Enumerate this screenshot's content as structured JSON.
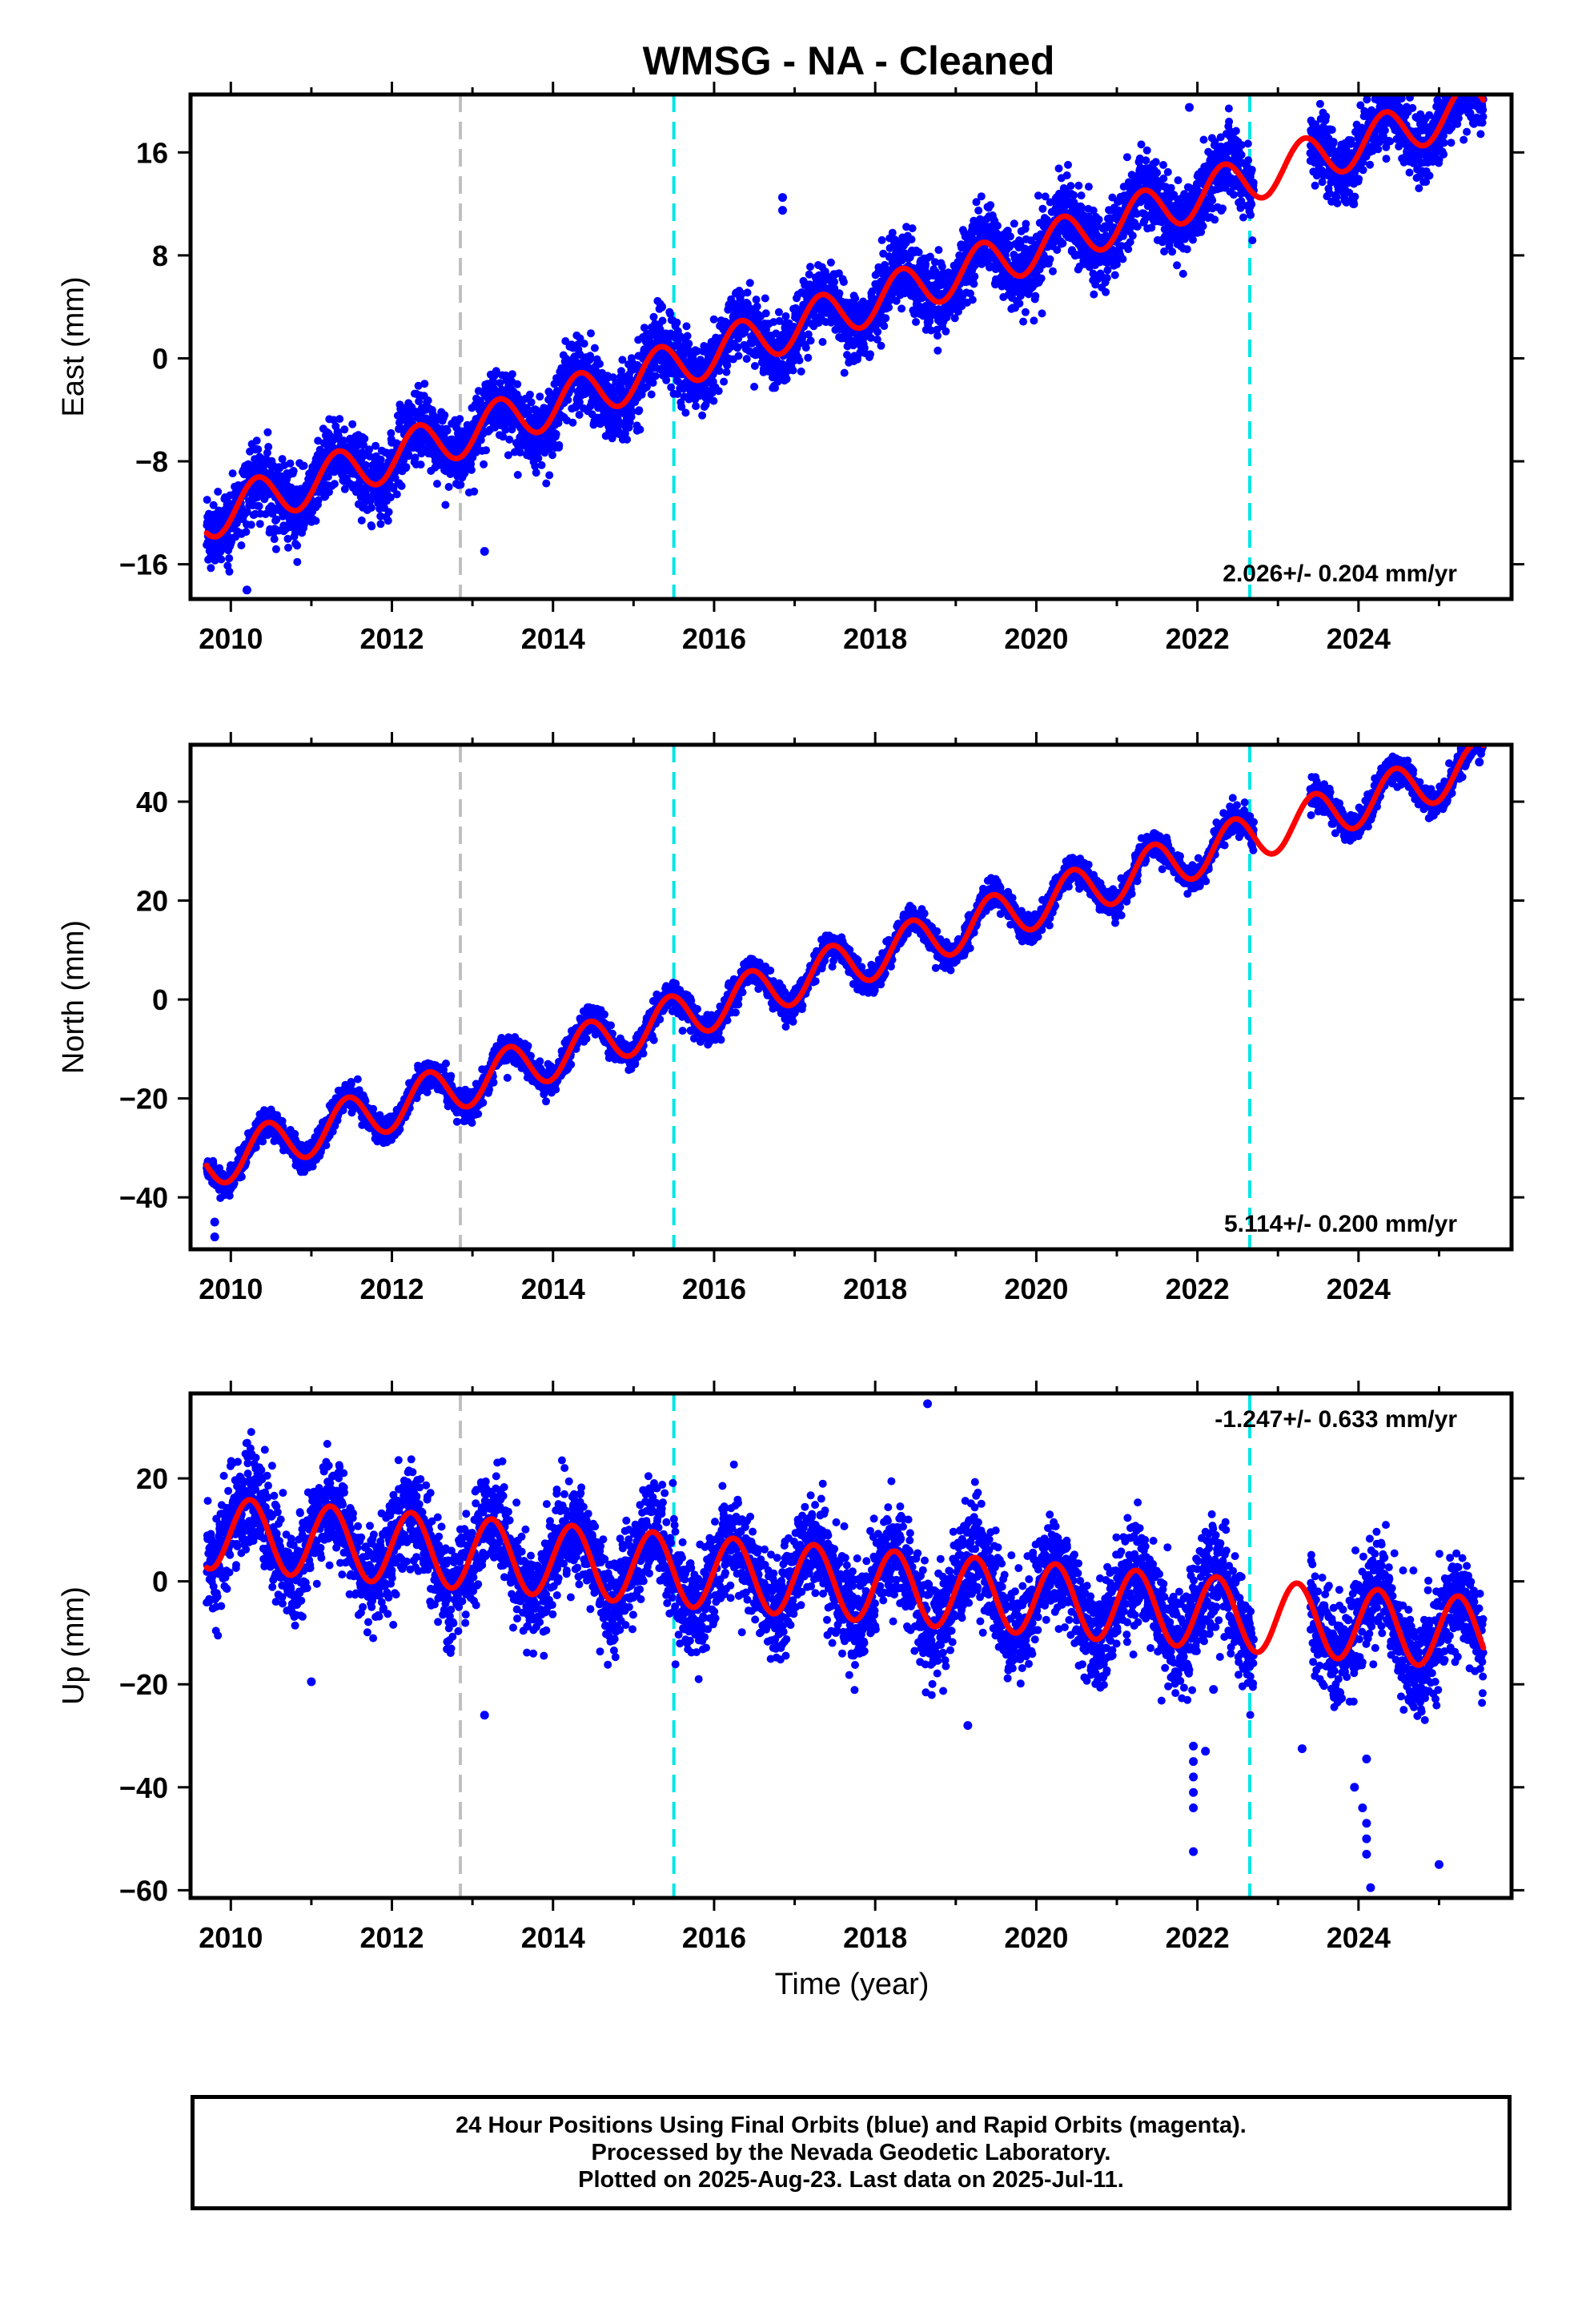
{
  "title": "WMSG  - NA - Cleaned",
  "xlabel": "Time (year)",
  "footer": {
    "line1": "24 Hour Positions Using Final Orbits (blue) and Rapid Orbits (magenta).",
    "line2": "Processed by the Nevada Geodetic Laboratory.",
    "line3": "Plotted on 2025-Aug-23. Last data on 2025-Jul-11."
  },
  "colors": {
    "points": "#0000ff",
    "model": "#ff0000",
    "equipment_change": "#c0c0c0",
    "event": "#00e5e5"
  },
  "chart_data": [
    {
      "type": "scatter",
      "component": "east",
      "ylabel": "East (mm)",
      "rate_label": "2.026+/- 0.204 mm/yr",
      "rate_position": "bottom-right",
      "xlim": [
        2009.5,
        2025.9
      ],
      "ylim": [
        -18.7,
        20.5
      ],
      "xticks": [
        2010,
        2012,
        2014,
        2016,
        2018,
        2020,
        2022,
        2024
      ],
      "yticks": [
        -16,
        -8,
        0,
        8,
        16
      ],
      "vlines": [
        {
          "x": 2012.85,
          "kind": "equipment_change"
        },
        {
          "x": 2015.5,
          "kind": "event"
        },
        {
          "x": 2022.65,
          "kind": "event"
        }
      ],
      "model": {
        "t0": 2009.7,
        "offset": -12.3,
        "rate": 2.026,
        "annual_cos": -0.8,
        "annual_sin": 1.6,
        "gap_start": 2022.7,
        "gap_end": 2023.4
      },
      "scatter": {
        "start": 2009.7,
        "end": 2025.55,
        "noise_sd": 1.4,
        "gap_start": 2022.7,
        "gap_end": 2023.4
      },
      "outliers": [
        [
          2016.85,
          12.5
        ],
        [
          2016.85,
          11.5
        ],
        [
          2021.9,
          19.5
        ],
        [
          2015.35,
          4
        ],
        [
          2013.15,
          -15
        ],
        [
          2010.2,
          -18
        ]
      ]
    },
    {
      "type": "scatter",
      "component": "north",
      "ylabel": "North (mm)",
      "rate_label": "5.114+/- 0.200 mm/yr",
      "rate_position": "bottom-right",
      "xlim": [
        2009.5,
        2025.9
      ],
      "ylim": [
        -50.5,
        51.5
      ],
      "xticks": [
        2010,
        2012,
        2014,
        2016,
        2018,
        2020,
        2022,
        2024
      ],
      "yticks": [
        -40,
        -20,
        0,
        20,
        40
      ],
      "vlines": [
        {
          "x": 2012.85,
          "kind": "equipment_change"
        },
        {
          "x": 2015.5,
          "kind": "event"
        },
        {
          "x": 2022.65,
          "kind": "event"
        }
      ],
      "model": {
        "t0": 2009.7,
        "offset": -33.5,
        "rate": 5.114,
        "annual_cos": -4.5,
        "annual_sin": 1.5,
        "gap_start": 2022.7,
        "gap_end": 2023.4
      },
      "scatter": {
        "start": 2009.7,
        "end": 2025.55,
        "noise_sd": 1.4,
        "gap_start": 2022.7,
        "gap_end": 2023.4
      },
      "outliers": [
        [
          2009.8,
          -48
        ],
        [
          2009.8,
          -45
        ],
        [
          2025.5,
          48
        ]
      ]
    },
    {
      "type": "scatter",
      "component": "up",
      "ylabel": "Up (mm)",
      "rate_label": "-1.247+/- 0.633 mm/yr",
      "rate_position": "top-right",
      "xlim": [
        2009.5,
        2025.9
      ],
      "ylim": [
        -61.5,
        36.5
      ],
      "xticks": [
        2010,
        2012,
        2014,
        2016,
        2018,
        2020,
        2022,
        2024
      ],
      "yticks": [
        -60,
        -40,
        -20,
        0,
        20
      ],
      "vlines": [
        {
          "x": 2012.85,
          "kind": "equipment_change"
        },
        {
          "x": 2015.5,
          "kind": "event"
        },
        {
          "x": 2022.65,
          "kind": "event"
        }
      ],
      "model": {
        "t0": 2009.7,
        "offset": 9.5,
        "rate": -1.247,
        "annual_cos": 0.5,
        "annual_sin": 7.0,
        "gap_start": 2022.7,
        "gap_end": 2023.4
      },
      "scatter": {
        "start": 2009.7,
        "end": 2025.55,
        "noise_sd": 5.0,
        "gap_start": 2022.7,
        "gap_end": 2023.4
      },
      "outliers": [
        [
          2018.65,
          34.5
        ],
        [
          2021.95,
          -32
        ],
        [
          2021.95,
          -35
        ],
        [
          2021.95,
          -38
        ],
        [
          2021.95,
          -41
        ],
        [
          2021.95,
          -44
        ],
        [
          2021.95,
          -52.5
        ],
        [
          2022.1,
          -33
        ],
        [
          2023.3,
          -32.5
        ],
        [
          2023.95,
          -40
        ],
        [
          2024.05,
          -44
        ],
        [
          2024.1,
          -47
        ],
        [
          2024.1,
          -50
        ],
        [
          2024.1,
          -53
        ],
        [
          2024.15,
          -59.5
        ],
        [
          2024.1,
          -34.5
        ],
        [
          2025.0,
          -55
        ],
        [
          2011.0,
          -19.5
        ],
        [
          2013.15,
          -26
        ],
        [
          2019.15,
          -28
        ],
        [
          2022.2,
          -21
        ]
      ]
    }
  ]
}
